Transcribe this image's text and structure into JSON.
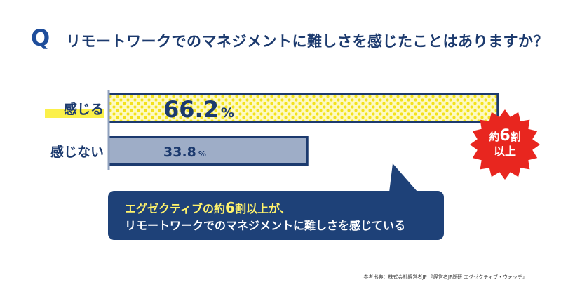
{
  "question": {
    "mark": "Q",
    "text": "リモートワークでのマネジメントに難しさを感じたことはありますか？"
  },
  "chart_data": {
    "type": "bar",
    "orientation": "horizontal",
    "categories": [
      "感じる",
      "感じない"
    ],
    "values": [
      66.2,
      33.8
    ],
    "value_labels": [
      "66.2",
      "33.8"
    ],
    "unit": "%",
    "xlim": [
      0,
      100
    ],
    "grid": false,
    "colors": {
      "bar_yes_fill": "#fdf9c2",
      "bar_yes_dots": "#f3e21c",
      "bar_no_fill": "#9eadc7",
      "bar_border": "#1c3a6e",
      "highlight": "#fbf04a"
    }
  },
  "badge": {
    "line1_prefix": "約",
    "line1_number": "6",
    "line1_suffix": "割",
    "line2": "以上",
    "color": "#e8261f"
  },
  "callout": {
    "line1_part1": "エグゼクティブの約",
    "line1_number": "6",
    "line1_part2": "割以上が、",
    "line2": "リモートワークでのマネジメントに難しさを感じている",
    "bg_color": "#1e4178",
    "accent_color": "#fff36b"
  },
  "source": "参考出典：株式会社経営者JP 『経営者JP総研 エグゼクティブ・ウォッチ』"
}
